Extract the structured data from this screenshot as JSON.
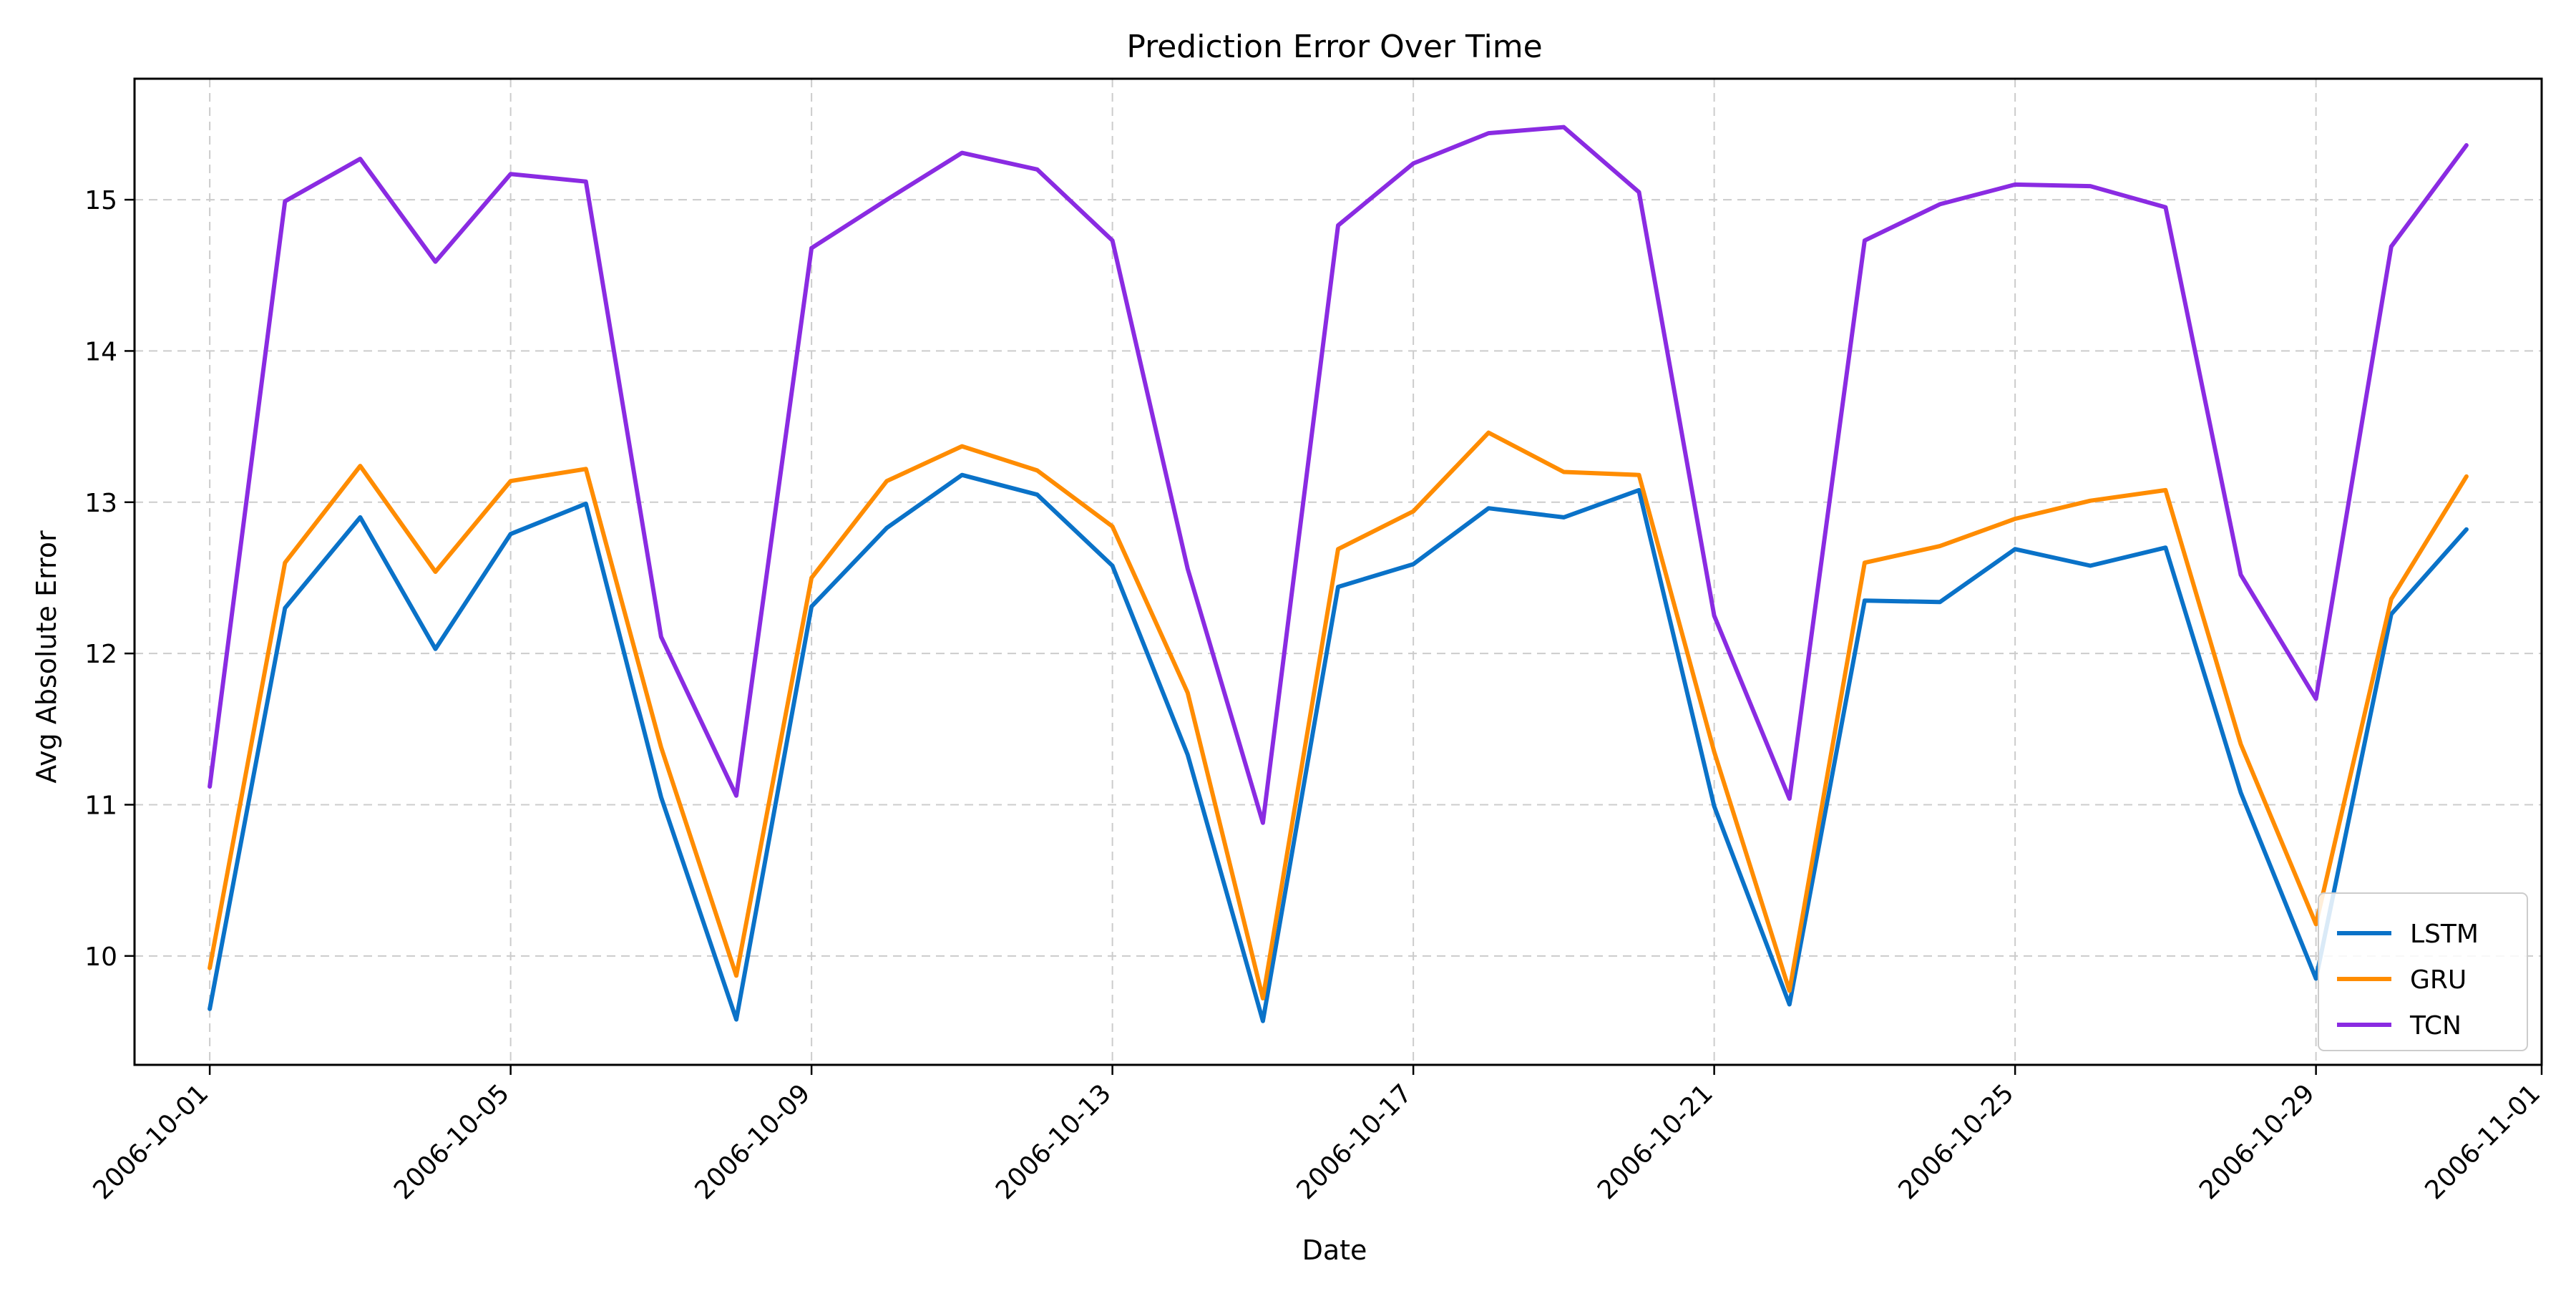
{
  "chart_data": {
    "type": "line",
    "title": "Prediction Error Over Time",
    "xlabel": "Date",
    "ylabel": "Avg Absolute Error",
    "x": [
      "2006-10-01",
      "2006-10-02",
      "2006-10-03",
      "2006-10-04",
      "2006-10-05",
      "2006-10-06",
      "2006-10-07",
      "2006-10-08",
      "2006-10-09",
      "2006-10-10",
      "2006-10-11",
      "2006-10-12",
      "2006-10-13",
      "2006-10-14",
      "2006-10-15",
      "2006-10-16",
      "2006-10-17",
      "2006-10-18",
      "2006-10-19",
      "2006-10-20",
      "2006-10-21",
      "2006-10-22",
      "2006-10-23",
      "2006-10-24",
      "2006-10-25",
      "2006-10-26",
      "2006-10-27",
      "2006-10-28",
      "2006-10-29",
      "2006-10-30",
      "2006-10-31"
    ],
    "xlim": [
      "2006-09-30",
      "2006-11-01"
    ],
    "ylim": [
      9.28,
      15.8
    ],
    "x_ticks": [
      "2006-10-01",
      "2006-10-05",
      "2006-10-09",
      "2006-10-13",
      "2006-10-17",
      "2006-10-21",
      "2006-10-25",
      "2006-10-29",
      "2006-11-01"
    ],
    "y_ticks": [
      10,
      11,
      12,
      13,
      14,
      15
    ],
    "grid": true,
    "legend_position": "bottom-right",
    "series": [
      {
        "name": "LSTM",
        "color": "#0a72c8",
        "values": [
          9.65,
          12.3,
          12.9,
          12.03,
          12.79,
          12.99,
          11.05,
          9.58,
          12.31,
          12.83,
          13.18,
          13.05,
          12.58,
          11.33,
          9.57,
          12.44,
          12.59,
          12.96,
          12.9,
          13.08,
          10.99,
          9.68,
          12.35,
          12.34,
          12.69,
          12.58,
          12.7,
          11.08,
          9.85,
          12.26,
          12.82
        ]
      },
      {
        "name": "GRU",
        "color": "#ff8c00",
        "values": [
          9.92,
          12.6,
          13.24,
          12.54,
          13.14,
          13.22,
          11.38,
          9.87,
          12.5,
          13.14,
          13.37,
          13.21,
          12.84,
          11.74,
          9.72,
          12.69,
          12.94,
          13.46,
          13.2,
          13.18,
          11.35,
          9.77,
          12.6,
          12.71,
          12.89,
          13.01,
          13.08,
          11.4,
          10.21,
          12.36,
          13.17
        ]
      },
      {
        "name": "TCN",
        "color": "#8a2be2",
        "values": [
          11.12,
          14.99,
          15.27,
          14.59,
          15.17,
          15.12,
          12.11,
          11.06,
          14.68,
          15.0,
          15.31,
          15.2,
          14.73,
          12.56,
          10.88,
          14.83,
          15.24,
          15.44,
          15.48,
          15.05,
          12.25,
          11.04,
          14.73,
          14.97,
          15.1,
          15.09,
          14.95,
          12.52,
          11.7,
          14.69,
          15.36
        ]
      }
    ]
  }
}
